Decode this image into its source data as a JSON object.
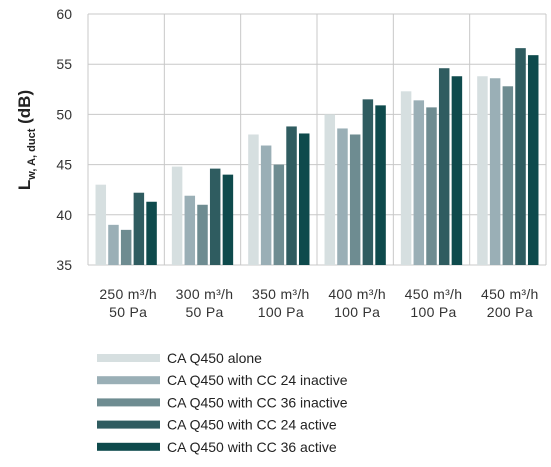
{
  "chart_data": {
    "type": "bar",
    "ylabel": {
      "main": "L",
      "sub": "w, A, duct",
      "unit": " (dB)"
    },
    "ylim": [
      35,
      60
    ],
    "yticks": [
      35,
      40,
      45,
      50,
      55,
      60
    ],
    "grid": true,
    "legend_position": "bottom",
    "categories": [
      {
        "line1": "250 m³/h",
        "line2": "50 Pa"
      },
      {
        "line1": "300 m³/h",
        "line2": "50 Pa"
      },
      {
        "line1": "350 m³/h",
        "line2": "100 Pa"
      },
      {
        "line1": "400 m³/h",
        "line2": "100 Pa"
      },
      {
        "line1": "450 m³/h",
        "line2": "100 Pa"
      },
      {
        "line1": "450 m³/h",
        "line2": "200 Pa"
      }
    ],
    "series": [
      {
        "name": "CA Q450 alone",
        "color": "#d6dfe0",
        "values": [
          43.0,
          44.8,
          48.0,
          50.0,
          52.3,
          53.8
        ]
      },
      {
        "name": "CA Q450 with CC 24 inactive",
        "color": "#9aafb6",
        "values": [
          39.0,
          41.9,
          46.9,
          48.6,
          51.4,
          53.6
        ]
      },
      {
        "name": "CA Q450 with CC 36 inactive",
        "color": "#6e8c91",
        "values": [
          38.5,
          41.0,
          45.0,
          48.0,
          50.7,
          52.8
        ]
      },
      {
        "name": "CA Q450 with CC 24 active",
        "color": "#2f5c60",
        "values": [
          42.2,
          44.6,
          48.8,
          51.5,
          54.6,
          56.6
        ]
      },
      {
        "name": "CA Q450 with CC 36 active",
        "color": "#0e4a4c",
        "values": [
          41.3,
          44.0,
          48.1,
          50.9,
          53.8,
          55.9
        ]
      }
    ]
  }
}
